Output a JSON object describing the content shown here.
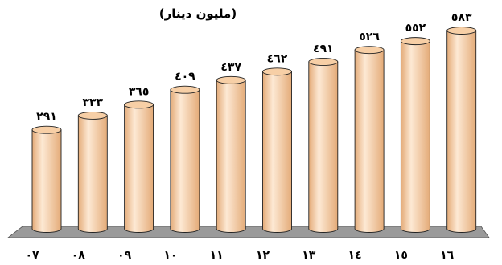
{
  "chart_data": {
    "type": "bar",
    "title": "(مليون دينار)",
    "categories": [
      "٠٧",
      "٠٨",
      "٠٩",
      "١٠",
      "١١",
      "١٢",
      "١٣",
      "١٤",
      "١٥",
      "١٦"
    ],
    "values": [
      291,
      333,
      365,
      409,
      437,
      462,
      491,
      526,
      552,
      583
    ],
    "value_labels": [
      "٢٩١",
      "٣٣٣",
      "٣٦٥",
      "٤٠٩",
      "٤٣٧",
      "٤٦٢",
      "٤٩١",
      "٥٢٦",
      "٥٥٢",
      "٥٨٣"
    ],
    "xlabel": "",
    "ylabel": "",
    "ylim": [
      0,
      600
    ],
    "grid": false,
    "legend": "none",
    "style": "3d-cylinder",
    "colors": {
      "bar_body": "#f7cfa6",
      "bar_highlight": "#fde9d4",
      "bar_shadow": "#e4ab78",
      "bar_outline": "#222222",
      "floor": "#9a9a9a",
      "text": "#000000"
    }
  }
}
